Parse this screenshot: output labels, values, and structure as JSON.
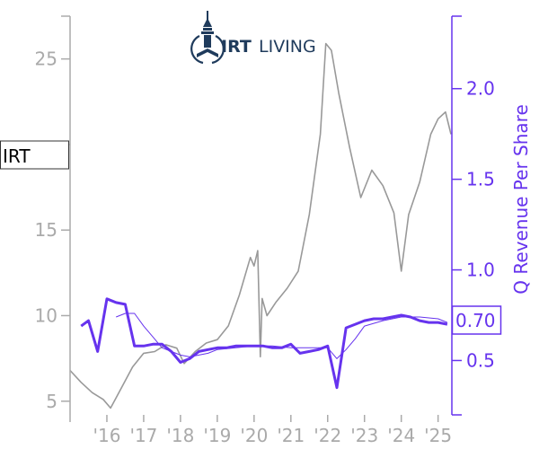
{
  "logo": {
    "bold": "IRT",
    "light": "LIVING",
    "color": "#1f3b5c"
  },
  "chart_data": {
    "type": "line",
    "ticker": "IRT",
    "last_value_label": "0.70",
    "ylabel_right": "Q Revenue Per Share",
    "colors": {
      "price": "#999999",
      "revenue": "#6633ee",
      "revenue_trend": "#6633ee",
      "left_axis": "#aaaaaa",
      "right_axis": "#6633ee"
    },
    "x_ticks": [
      "'16",
      "'17",
      "'18",
      "'19",
      "'20",
      "'21",
      "'22",
      "'23",
      "'24",
      "'25"
    ],
    "x_tick_values": [
      2016,
      2017,
      2018,
      2019,
      2020,
      2021,
      2022,
      2023,
      2024,
      2025
    ],
    "xlim": [
      2015.0,
      2025.35
    ],
    "left_axis": {
      "ticks": [
        5,
        10,
        15,
        20,
        25
      ],
      "tick_labels": [
        "5",
        "10",
        "15",
        "",
        "25"
      ],
      "ylim": [
        4.2,
        27.5
      ]
    },
    "right_axis": {
      "ticks": [
        0.5,
        1.0,
        1.5,
        2.0
      ],
      "tick_labels": [
        "0.5",
        "1.0",
        "1.5",
        "2.0"
      ],
      "ylim": [
        0.2,
        2.4
      ]
    },
    "series": [
      {
        "axis": "left",
        "style": "price",
        "x": [
          2015.0,
          2015.3,
          2015.6,
          2015.9,
          2016.1,
          2016.4,
          2016.7,
          2017.0,
          2017.3,
          2017.6,
          2017.9,
          2018.1,
          2018.4,
          2018.7,
          2019.0,
          2019.3,
          2019.6,
          2019.9,
          2020.0,
          2020.1,
          2020.17,
          2020.22,
          2020.35,
          2020.6,
          2020.9,
          2021.2,
          2021.5,
          2021.8,
          2021.95,
          2022.1,
          2022.3,
          2022.6,
          2022.9,
          2023.2,
          2023.5,
          2023.8,
          2024.0,
          2024.2,
          2024.5,
          2024.8,
          2025.0,
          2025.2,
          2025.35
        ],
        "y": [
          6.8,
          6.1,
          5.5,
          5.1,
          4.6,
          5.8,
          7.0,
          7.8,
          7.9,
          8.3,
          8.1,
          7.2,
          7.9,
          8.4,
          8.6,
          9.4,
          11.2,
          13.4,
          12.9,
          13.8,
          7.6,
          11.0,
          10.0,
          10.8,
          11.6,
          12.6,
          15.9,
          20.6,
          25.9,
          25.5,
          23.0,
          19.8,
          16.9,
          18.5,
          17.6,
          16.0,
          12.6,
          15.9,
          17.8,
          20.6,
          21.5,
          21.9,
          20.6
        ]
      },
      {
        "axis": "right",
        "style": "revenue",
        "x": [
          2015.3,
          2015.5,
          2015.75,
          2016.0,
          2016.25,
          2016.5,
          2016.75,
          2017.0,
          2017.25,
          2017.5,
          2017.75,
          2018.0,
          2018.25,
          2018.5,
          2018.75,
          2019.0,
          2019.25,
          2019.5,
          2019.75,
          2020.0,
          2020.25,
          2020.5,
          2020.75,
          2021.0,
          2021.25,
          2021.5,
          2021.75,
          2022.0,
          2022.25,
          2022.5,
          2022.75,
          2023.0,
          2023.25,
          2023.5,
          2023.75,
          2024.0,
          2024.25,
          2024.5,
          2024.75,
          2025.0,
          2025.25
        ],
        "y": [
          0.69,
          0.72,
          0.55,
          0.84,
          0.82,
          0.81,
          0.58,
          0.58,
          0.59,
          0.59,
          0.55,
          0.49,
          0.51,
          0.55,
          0.56,
          0.57,
          0.57,
          0.58,
          0.58,
          0.58,
          0.58,
          0.57,
          0.57,
          0.59,
          0.54,
          0.55,
          0.56,
          0.58,
          0.35,
          0.68,
          0.7,
          0.72,
          0.73,
          0.73,
          0.74,
          0.75,
          0.74,
          0.72,
          0.71,
          0.71,
          0.7
        ]
      },
      {
        "axis": "right",
        "style": "revenue_trend",
        "x": [
          2016.25,
          2016.5,
          2016.75,
          2017.0,
          2017.25,
          2017.5,
          2017.75,
          2018.0,
          2018.25,
          2018.5,
          2018.75,
          2019.0,
          2019.5,
          2020.0,
          2020.5,
          2021.0,
          2021.5,
          2022.0,
          2022.25,
          2022.5,
          2022.75,
          2023.0,
          2023.5,
          2024.0,
          2024.5,
          2025.0,
          2025.25
        ],
        "y": [
          0.74,
          0.76,
          0.76,
          0.69,
          0.63,
          0.57,
          0.55,
          0.53,
          0.52,
          0.53,
          0.54,
          0.56,
          0.57,
          0.58,
          0.58,
          0.57,
          0.57,
          0.57,
          0.51,
          0.56,
          0.62,
          0.69,
          0.72,
          0.74,
          0.74,
          0.73,
          0.71
        ]
      }
    ]
  }
}
